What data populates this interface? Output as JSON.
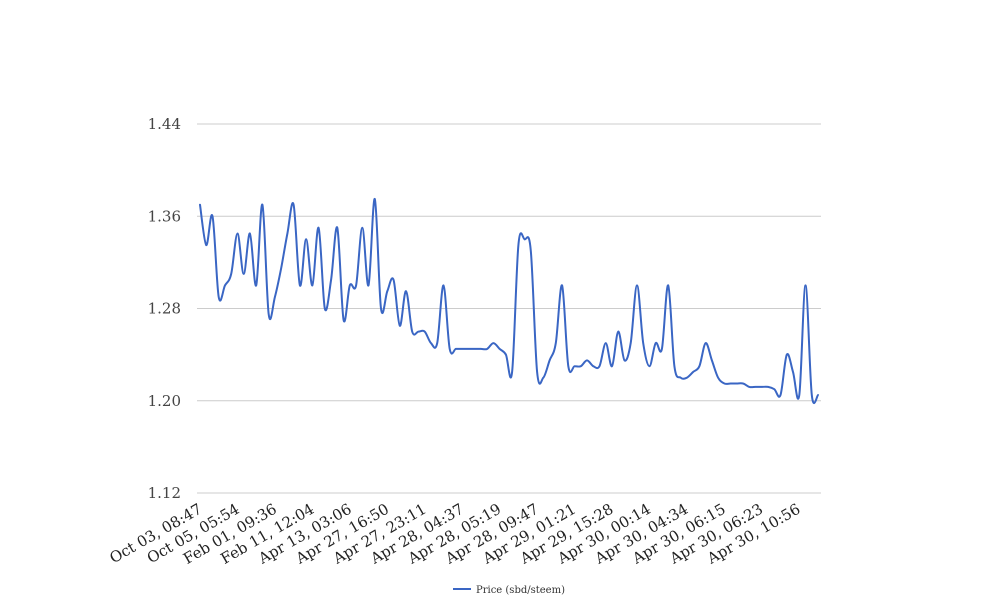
{
  "chart_data": {
    "type": "line",
    "title": "",
    "xlabel": "",
    "ylabel": "",
    "ylim": [
      1.12,
      1.44
    ],
    "yticks": [
      "1.12",
      "1.20",
      "1.28",
      "1.36",
      "1.44"
    ],
    "grid": true,
    "legend_position": "bottom",
    "line_color": "#3a66c4",
    "xticks": [
      "Oct 03, 08:47",
      "Oct 05, 05:54",
      "Feb 01, 09:36",
      "Feb 11, 12:04",
      "Apr 13, 03:06",
      "Apr 27, 16:50",
      "Apr 27, 23:11",
      "Apr 28, 04:37",
      "Apr 28, 05:19",
      "Apr 28, 09:47",
      "Apr 29, 01:21",
      "Apr 29, 15:28",
      "Apr 30, 00:14",
      "Apr 30, 04:34",
      "Apr 30, 06:15",
      "Apr 30, 06:23",
      "Apr 30, 10:56"
    ],
    "series": [
      {
        "name": "Price (sbd/steem)",
        "values": [
          1.37,
          1.335,
          1.36,
          1.29,
          1.3,
          1.31,
          1.345,
          1.31,
          1.345,
          1.3,
          1.37,
          1.275,
          1.29,
          1.315,
          1.345,
          1.37,
          1.3,
          1.34,
          1.3,
          1.35,
          1.28,
          1.305,
          1.35,
          1.27,
          1.3,
          1.3,
          1.35,
          1.3,
          1.375,
          1.28,
          1.295,
          1.305,
          1.265,
          1.295,
          1.26,
          1.26,
          1.26,
          1.25,
          1.25,
          1.3,
          1.245,
          1.245,
          1.245,
          1.245,
          1.245,
          1.245,
          1.245,
          1.25,
          1.245,
          1.24,
          1.225,
          1.335,
          1.34,
          1.33,
          1.225,
          1.22,
          1.235,
          1.25,
          1.3,
          1.23,
          1.23,
          1.23,
          1.235,
          1.23,
          1.23,
          1.25,
          1.23,
          1.26,
          1.235,
          1.25,
          1.3,
          1.25,
          1.23,
          1.25,
          1.245,
          1.3,
          1.23,
          1.22,
          1.22,
          1.225,
          1.23,
          1.25,
          1.235,
          1.22,
          1.215,
          1.215,
          1.215,
          1.215,
          1.212,
          1.212,
          1.212,
          1.212,
          1.21,
          1.205,
          1.24,
          1.225,
          1.205,
          1.3,
          1.205,
          1.205
        ]
      }
    ]
  }
}
